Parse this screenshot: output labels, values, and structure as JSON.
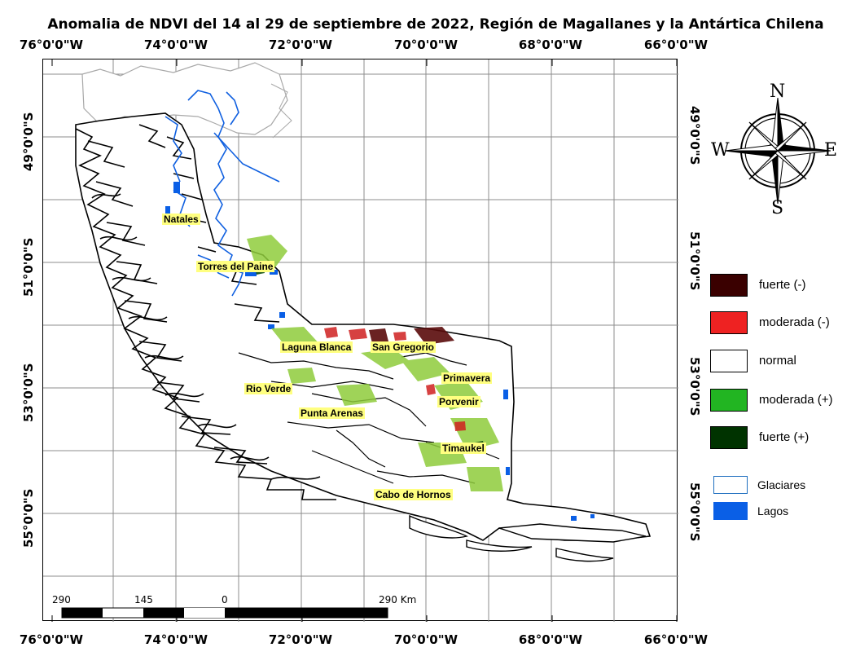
{
  "title": "Anomalia de NDVI del 14 al 29 de septiembre de 2022, Región de Magallanes y la Antártica Chilena",
  "lon_labels": [
    "76°0'0\"W",
    "74°0'0\"W",
    "72°0'0\"W",
    "70°0'0\"W",
    "68°0'0\"W",
    "66°0'0\"W"
  ],
  "lat_labels": [
    "49°0'0\"S",
    "51°0'0\"S",
    "53°0'0\"S",
    "55°0'0\"S"
  ],
  "legend": {
    "items": [
      {
        "label": "fuerte (-)",
        "color": "#3a0000"
      },
      {
        "label": "moderada (-)",
        "color": "#ee2222"
      },
      {
        "label": "normal",
        "color": "#ffffff"
      },
      {
        "label": "moderada (+)",
        "color": "#22b522"
      },
      {
        "label": "fuerte (+)",
        "color": "#003300"
      }
    ],
    "extra": [
      {
        "label": "Glaciares",
        "color": "#ffffff",
        "border": "#1f6fbf"
      },
      {
        "label": "Lagos",
        "color": "#0a5fe6",
        "border": "#0a5fe6"
      }
    ]
  },
  "compass": {
    "n": "N",
    "s": "S",
    "e": "E",
    "w": "W"
  },
  "places": [
    "Natales",
    "Torres del Paine",
    "Laguna Blanca",
    "San Gregorio",
    "Primavera",
    "Rio Verde",
    "Porvenir",
    "Punta Arenas",
    "Timaukel",
    "Cabo de Hornos"
  ],
  "scale": {
    "labels": [
      "290",
      "145",
      "0",
      "290 Km"
    ]
  }
}
